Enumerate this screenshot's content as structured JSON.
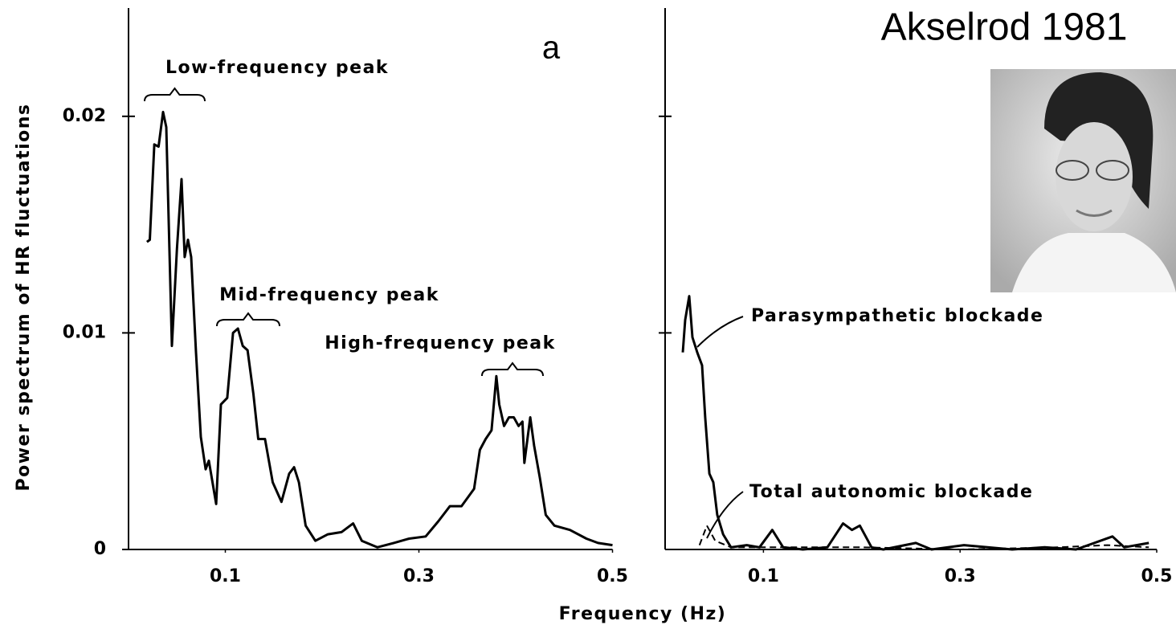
{
  "title": "Akselrod 1981",
  "xlabel": "Frequency (Hz)",
  "chart_data": [
    {
      "type": "line",
      "panel_label": "a",
      "ylabel": "Power spectrum of HR fluctuations",
      "xlim": [
        0,
        0.5
      ],
      "ylim": [
        0,
        0.025
      ],
      "xticks": [
        0.1,
        0.3,
        0.5
      ],
      "yticks": [
        0,
        0.01,
        0.02
      ],
      "annotations": [
        "Low-frequency peak",
        "Mid-frequency peak",
        "High-frequency peak"
      ],
      "series": [
        {
          "color": "#000000",
          "x": [
            0.019,
            0.022,
            0.0266,
            0.031,
            0.0357,
            0.039,
            0.0448,
            0.05,
            0.0548,
            0.058,
            0.0614,
            0.0647,
            0.0697,
            0.0747,
            0.0797,
            0.083,
            0.0905,
            0.0954,
            0.102,
            0.108,
            0.113,
            0.118,
            0.123,
            0.129,
            0.134,
            0.141,
            0.149,
            0.158,
            0.166,
            0.171,
            0.176,
            0.183,
            0.193,
            0.206,
            0.22,
            0.232,
            0.241,
            0.257,
            0.274,
            0.29,
            0.307,
            0.32,
            0.332,
            0.344,
            0.357,
            0.363,
            0.369,
            0.375,
            0.38,
            0.383,
            0.388,
            0.393,
            0.398,
            0.403,
            0.407,
            0.409,
            0.415,
            0.419,
            0.425,
            0.431,
            0.44,
            0.456,
            0.473,
            0.485,
            0.5
          ],
          "values": [
            0.0142,
            0.0143,
            0.0187,
            0.0186,
            0.0202,
            0.0195,
            0.0094,
            0.0139,
            0.0171,
            0.0135,
            0.0143,
            0.0135,
            0.0091,
            0.0052,
            0.0037,
            0.0041,
            0.0021,
            0.0067,
            0.007,
            0.01,
            0.0102,
            0.0094,
            0.0092,
            0.0072,
            0.0051,
            0.0051,
            0.0031,
            0.0022,
            0.0035,
            0.0038,
            0.0031,
            0.0011,
            0.0004,
            0.0007,
            0.0008,
            0.0012,
            0.0004,
            0.0001,
            0.0003,
            0.0005,
            0.0006,
            0.0013,
            0.002,
            0.002,
            0.0028,
            0.0046,
            0.0051,
            0.0055,
            0.008,
            0.0067,
            0.0057,
            0.0061,
            0.0061,
            0.0057,
            0.0059,
            0.004,
            0.0061,
            0.0048,
            0.0033,
            0.0016,
            0.0011,
            0.0009,
            0.0005,
            0.0003,
            0.0002
          ]
        }
      ]
    },
    {
      "type": "line",
      "xlim": [
        0,
        0.5
      ],
      "ylim": [
        0,
        0.025
      ],
      "xticks": [
        0.1,
        0.3,
        0.5
      ],
      "yticks": [
        0.01,
        0.02
      ],
      "series": [
        {
          "name": "Parasympathetic blockade",
          "color": "#000000",
          "dashed": false,
          "x": [
            0.018,
            0.0204,
            0.0245,
            0.0278,
            0.0327,
            0.0376,
            0.0408,
            0.045,
            0.049,
            0.053,
            0.059,
            0.067,
            0.083,
            0.096,
            0.109,
            0.12,
            0.14,
            0.165,
            0.181,
            0.19,
            0.198,
            0.21,
            0.222,
            0.255,
            0.271,
            0.304,
            0.353,
            0.386,
            0.418,
            0.455,
            0.467,
            0.492
          ],
          "values": [
            0.0091,
            0.0106,
            0.0117,
            0.0098,
            0.0091,
            0.0085,
            0.0061,
            0.0035,
            0.0031,
            0.0016,
            0.0007,
            0.0001,
            0.0002,
            0.0001,
            0.0009,
            0.0001,
            0,
            0.0001,
            0.0012,
            0.0009,
            0.0011,
            0.0001,
            0,
            0.0003,
            0,
            0.0002,
            0,
            0.0001,
            0,
            0.0006,
            0.0001,
            0.0003
          ]
        },
        {
          "name": "Total autonomic blockade",
          "color": "#000000",
          "dashed": true,
          "x": [
            0.035,
            0.0425,
            0.051,
            0.067,
            0.1,
            0.2,
            0.3,
            0.4,
            0.45,
            0.492
          ],
          "values": [
            0.0002,
            0.0011,
            0.0004,
            0.0001,
            0.0001,
            0.0001,
            0,
            0.0001,
            0.0002,
            0.0001
          ]
        }
      ]
    }
  ]
}
